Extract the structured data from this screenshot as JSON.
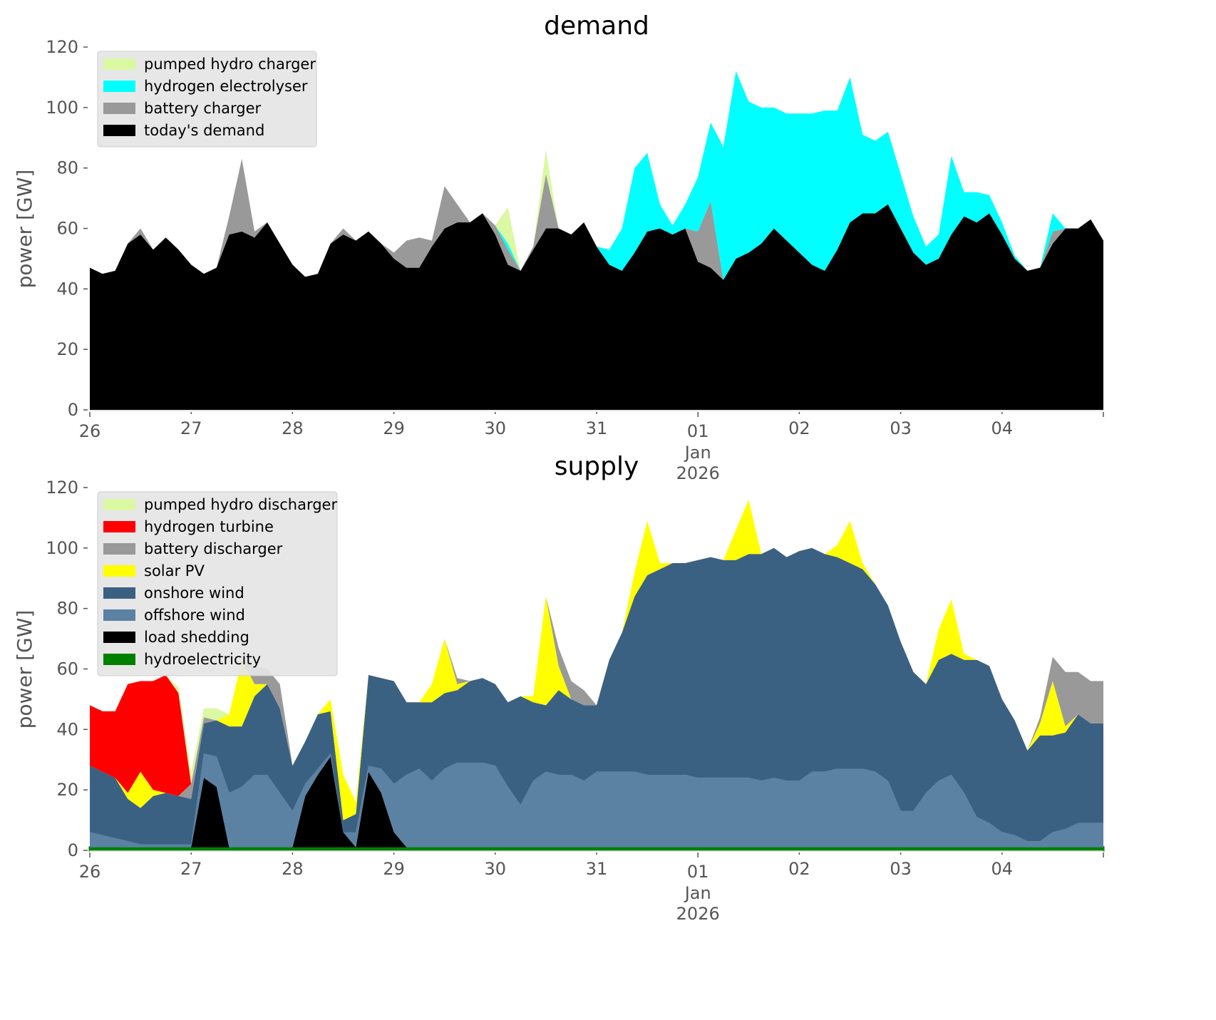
{
  "chart_data": [
    {
      "type": "area",
      "stacked": true,
      "title": "demand",
      "xlabel": "",
      "ylabel": "power [GW]",
      "ylim": [
        0,
        120
      ],
      "yticks": [
        0,
        20,
        40,
        60,
        80,
        100,
        120
      ],
      "xticks": [
        "26",
        "27",
        "28",
        "29",
        "30",
        "31",
        "01",
        "02",
        "03",
        "04"
      ],
      "xtick_sublabel": {
        "tick": "01",
        "lines": [
          "Jan",
          "2026"
        ]
      },
      "x_start": "2025-12-26T00:00",
      "x_step_hours": 3,
      "x_days": 10,
      "grid": false,
      "legend_position": "top-left",
      "legend": [
        "pumped hydro charger",
        "hydrogen electrolyser",
        "battery charger",
        "today's demand"
      ],
      "series": [
        {
          "name": "today's demand",
          "color": "#000000",
          "values": [
            47,
            45,
            46,
            55,
            58,
            53,
            57,
            53,
            48,
            45,
            47,
            58,
            59,
            57,
            62,
            55,
            48,
            44,
            45,
            55,
            58,
            56,
            59,
            55,
            50,
            47,
            47,
            54,
            60,
            62,
            62,
            65,
            58,
            48,
            46,
            53,
            60,
            60,
            58,
            62,
            54,
            48,
            46,
            52,
            59,
            60,
            58,
            60,
            49,
            47,
            43,
            50,
            52,
            55,
            60,
            56,
            52,
            48,
            46,
            53,
            62,
            65,
            65,
            68,
            60,
            52,
            48,
            50,
            58,
            64,
            62,
            65,
            58,
            50,
            46,
            47,
            55,
            60,
            60,
            63,
            56
          ]
        },
        {
          "name": "battery charger",
          "color": "#999999",
          "values": [
            0,
            0,
            0,
            0,
            2,
            0,
            0,
            0,
            0,
            0,
            0,
            6,
            24,
            2,
            0,
            0,
            0,
            0,
            0,
            0,
            2,
            0,
            0,
            0,
            2,
            9,
            10,
            2,
            14,
            6,
            0,
            0,
            3,
            5,
            0,
            1,
            18,
            0,
            0,
            0,
            0,
            0,
            0,
            0,
            0,
            0,
            0,
            0,
            10,
            22,
            0,
            0,
            0,
            0,
            0,
            0,
            0,
            0,
            0,
            0,
            0,
            0,
            0,
            0,
            0,
            0,
            0,
            0,
            0,
            0,
            0,
            0,
            0,
            0,
            0,
            0,
            4,
            0,
            0,
            0,
            0
          ]
        },
        {
          "name": "hydrogen electrolyser",
          "color": "#00ffff",
          "values": [
            0,
            0,
            0,
            0,
            0,
            0,
            0,
            0,
            0,
            0,
            0,
            0,
            0,
            0,
            0,
            0,
            0,
            0,
            0,
            0,
            0,
            0,
            0,
            0,
            0,
            0,
            0,
            0,
            0,
            0,
            0,
            0,
            0,
            2,
            0,
            0,
            0,
            0,
            0,
            0,
            0,
            5,
            14,
            28,
            26,
            8,
            3,
            8,
            18,
            26,
            44,
            62,
            50,
            45,
            40,
            42,
            46,
            50,
            53,
            46,
            48,
            26,
            24,
            24,
            18,
            12,
            6,
            8,
            26,
            8,
            10,
            6,
            4,
            1,
            0,
            0,
            6,
            0,
            0,
            0,
            0
          ]
        },
        {
          "name": "pumped hydro charger",
          "color": "#dbf8a3",
          "values": [
            0,
            0,
            0,
            0,
            0,
            0,
            0,
            0,
            0,
            0,
            0,
            0,
            0,
            0,
            0,
            0,
            0,
            0,
            0,
            0,
            0,
            0,
            0,
            0,
            0,
            0,
            0,
            0,
            0,
            0,
            0,
            0,
            0,
            12,
            0,
            0,
            8,
            0,
            0,
            0,
            0,
            0,
            0,
            0,
            0,
            0,
            0,
            0,
            0,
            0,
            0,
            0,
            0,
            0,
            0,
            0,
            0,
            0,
            0,
            0,
            0,
            0,
            0,
            0,
            0,
            0,
            0,
            0,
            0,
            0,
            0,
            0,
            0,
            0,
            0,
            0,
            0,
            0,
            0,
            0,
            0
          ]
        }
      ]
    },
    {
      "type": "area",
      "stacked": true,
      "title": "supply",
      "xlabel": "",
      "ylabel": "power [GW]",
      "ylim": [
        0,
        120
      ],
      "yticks": [
        0,
        20,
        40,
        60,
        80,
        100,
        120
      ],
      "xticks": [
        "26",
        "27",
        "28",
        "29",
        "30",
        "31",
        "01",
        "02",
        "03",
        "04"
      ],
      "xtick_sublabel": {
        "tick": "01",
        "lines": [
          "Jan",
          "2026"
        ]
      },
      "x_start": "2025-12-26T00:00",
      "x_step_hours": 3,
      "x_days": 10,
      "grid": false,
      "legend_position": "top-left",
      "legend": [
        "pumped hydro discharger",
        "hydrogen turbine",
        "battery discharger",
        "solar PV",
        "onshore wind",
        "offshore wind",
        "load shedding",
        "hydroelectricity"
      ],
      "series": [
        {
          "name": "hydroelectricity",
          "color": "#008000",
          "values": [
            1,
            1,
            1,
            1,
            1,
            1,
            1,
            1,
            1,
            1,
            1,
            1,
            1,
            1,
            1,
            1,
            1,
            1,
            1,
            1,
            1,
            1,
            1,
            1,
            1,
            1,
            1,
            1,
            1,
            1,
            1,
            1,
            1,
            1,
            1,
            1,
            1,
            1,
            1,
            1,
            1,
            1,
            1,
            1,
            1,
            1,
            1,
            1,
            1,
            1,
            1,
            1,
            1,
            1,
            1,
            1,
            1,
            1,
            1,
            1,
            1,
            1,
            1,
            1,
            1,
            1,
            1,
            1,
            1,
            1,
            1,
            1,
            1,
            1,
            1,
            1,
            1,
            1,
            1,
            1,
            1
          ]
        },
        {
          "name": "load shedding",
          "color": "#000000",
          "values": [
            0,
            0,
            0,
            0,
            0,
            0,
            0,
            0,
            0,
            23,
            20,
            0,
            0,
            0,
            0,
            0,
            0,
            17,
            24,
            30,
            5,
            0,
            25,
            18,
            5,
            0,
            0,
            0,
            0,
            0,
            0,
            0,
            0,
            0,
            0,
            0,
            0,
            0,
            0,
            0,
            0,
            0,
            0,
            0,
            0,
            0,
            0,
            0,
            0,
            0,
            0,
            0,
            0,
            0,
            0,
            0,
            0,
            0,
            0,
            0,
            0,
            0,
            0,
            0,
            0,
            0,
            0,
            0,
            0,
            0,
            0,
            0,
            0,
            0,
            0,
            0,
            0,
            0,
            0,
            0,
            0
          ]
        },
        {
          "name": "offshore wind",
          "color": "#5b81a3",
          "values": [
            5,
            4,
            3,
            2,
            1,
            1,
            1,
            1,
            1,
            8,
            10,
            18,
            20,
            24,
            24,
            18,
            12,
            4,
            2,
            1,
            0,
            5,
            2,
            8,
            16,
            24,
            26,
            22,
            26,
            28,
            28,
            28,
            27,
            20,
            14,
            22,
            25,
            24,
            24,
            22,
            25,
            25,
            25,
            25,
            24,
            24,
            24,
            24,
            23,
            23,
            23,
            23,
            23,
            22,
            23,
            22,
            22,
            25,
            25,
            26,
            26,
            26,
            25,
            22,
            12,
            12,
            18,
            22,
            24,
            18,
            10,
            8,
            5,
            4,
            2,
            2,
            5,
            6,
            8,
            8,
            8
          ]
        },
        {
          "name": "onshore wind",
          "color": "#3b6182",
          "values": [
            22,
            21,
            20,
            14,
            12,
            16,
            17,
            16,
            15,
            10,
            12,
            22,
            20,
            26,
            30,
            28,
            15,
            14,
            18,
            14,
            4,
            6,
            30,
            30,
            34,
            24,
            22,
            26,
            25,
            24,
            27,
            28,
            27,
            28,
            36,
            26,
            22,
            28,
            25,
            25,
            22,
            37,
            46,
            58,
            66,
            68,
            70,
            70,
            72,
            73,
            72,
            72,
            74,
            75,
            76,
            74,
            76,
            74,
            72,
            70,
            68,
            66,
            62,
            58,
            56,
            46,
            36,
            40,
            40,
            44,
            52,
            52,
            44,
            38,
            30,
            35,
            32,
            32,
            36,
            33,
            33
          ]
        },
        {
          "name": "solar PV",
          "color": "#ffff00",
          "values": [
            0,
            0,
            0,
            2,
            12,
            2,
            0,
            0,
            0,
            0,
            0,
            4,
            22,
            4,
            0,
            0,
            0,
            0,
            0,
            4,
            15,
            4,
            0,
            0,
            0,
            0,
            0,
            6,
            18,
            2,
            0,
            0,
            0,
            0,
            0,
            2,
            36,
            8,
            0,
            0,
            0,
            0,
            0,
            8,
            18,
            2,
            0,
            0,
            0,
            0,
            0,
            10,
            18,
            0,
            0,
            0,
            0,
            0,
            0,
            4,
            14,
            2,
            0,
            0,
            0,
            0,
            0,
            10,
            18,
            2,
            0,
            0,
            0,
            0,
            0,
            4,
            18,
            2,
            0,
            0,
            0
          ]
        },
        {
          "name": "battery discharger",
          "color": "#999999",
          "values": [
            0,
            0,
            0,
            0,
            0,
            0,
            0,
            0,
            5,
            2,
            0,
            0,
            0,
            6,
            5,
            8,
            0,
            0,
            0,
            0,
            0,
            0,
            0,
            0,
            0,
            0,
            0,
            0,
            0,
            2,
            0,
            0,
            0,
            0,
            0,
            0,
            0,
            6,
            6,
            5,
            0,
            0,
            0,
            0,
            0,
            0,
            0,
            0,
            0,
            0,
            0,
            0,
            0,
            0,
            0,
            0,
            0,
            0,
            0,
            0,
            0,
            0,
            0,
            0,
            0,
            0,
            0,
            0,
            0,
            0,
            0,
            0,
            0,
            0,
            0,
            2,
            8,
            18,
            14,
            14,
            14
          ]
        },
        {
          "name": "hydrogen turbine",
          "color": "#ff0000",
          "values": [
            20,
            20,
            22,
            36,
            30,
            36,
            39,
            34,
            0,
            0,
            0,
            0,
            0,
            0,
            0,
            0,
            0,
            0,
            0,
            0,
            0,
            0,
            0,
            0,
            0,
            0,
            0,
            0,
            0,
            0,
            0,
            0,
            0,
            0,
            0,
            0,
            0,
            0,
            0,
            0,
            0,
            0,
            0,
            0,
            0,
            0,
            0,
            0,
            0,
            0,
            0,
            0,
            0,
            0,
            0,
            0,
            0,
            0,
            0,
            0,
            0,
            0,
            0,
            0,
            0,
            0,
            0,
            0,
            0,
            0,
            0,
            0,
            0,
            0,
            0,
            0,
            0,
            0,
            0,
            0,
            0
          ]
        },
        {
          "name": "pumped hydro discharger",
          "color": "#dbf8a3",
          "values": [
            0,
            0,
            0,
            0,
            0,
            0,
            0,
            2,
            4,
            3,
            4,
            0,
            0,
            0,
            0,
            0,
            0,
            0,
            0,
            0,
            0,
            0,
            0,
            0,
            0,
            0,
            0,
            0,
            0,
            0,
            0,
            0,
            0,
            0,
            0,
            0,
            0,
            0,
            0,
            0,
            0,
            0,
            0,
            0,
            0,
            0,
            0,
            0,
            0,
            0,
            0,
            0,
            0,
            0,
            0,
            0,
            0,
            0,
            0,
            0,
            0,
            0,
            0,
            0,
            0,
            0,
            0,
            0,
            0,
            0,
            0,
            0,
            0,
            0,
            0,
            0,
            0,
            0,
            0,
            0,
            0
          ]
        }
      ]
    }
  ]
}
